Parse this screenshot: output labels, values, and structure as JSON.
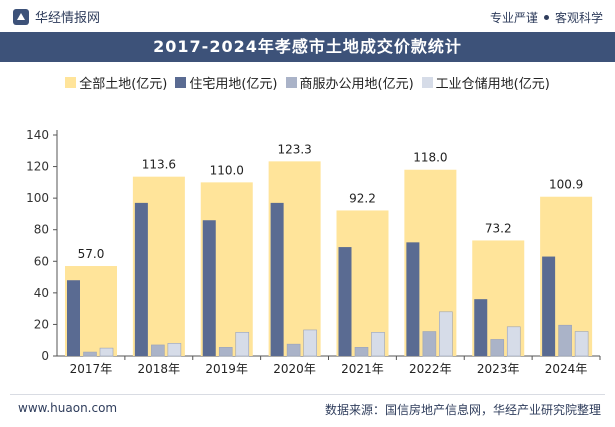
{
  "header": {
    "brand": "华经情报网",
    "tagline_left": "专业严谨",
    "tagline_right": "客观科学"
  },
  "title": "2017-2024年孝感市土地成交价款统计",
  "footer": {
    "website": "www.huaon.com",
    "source": "数据来源：国信房地产信息网，华经产业研究院整理"
  },
  "colors": {
    "total": "#ffe49a",
    "residential": "#5a6b92",
    "commercial": "#aab3c8",
    "industrial": "#d6dce8",
    "title_bg": "#3d5279"
  },
  "chart_data": {
    "type": "bar",
    "categories": [
      "2017年",
      "2018年",
      "2019年",
      "2020年",
      "2021年",
      "2022年",
      "2023年",
      "2024年"
    ],
    "series": [
      {
        "name": "全部土地(亿元)",
        "values": [
          57.0,
          113.6,
          110.0,
          123.3,
          92.2,
          118.0,
          73.2,
          100.9
        ]
      },
      {
        "name": "住宅用地(亿元)",
        "values": [
          48,
          97,
          86,
          97,
          69,
          72,
          36,
          63
        ]
      },
      {
        "name": "商服办公用地(亿元)",
        "values": [
          2.5,
          7,
          5.5,
          7.5,
          5.5,
          15.5,
          10.5,
          19.5
        ]
      },
      {
        "name": "工业仓储用地(亿元)",
        "values": [
          5,
          8,
          15,
          16.5,
          15,
          28,
          18.5,
          15.5
        ]
      }
    ],
    "data_labels": [
      "57.0",
      "113.6",
      "110.0",
      "123.3",
      "92.2",
      "118.0",
      "73.2",
      "100.9"
    ],
    "ylim": [
      0,
      140
    ],
    "yticks": [
      "0",
      "20",
      "40",
      "60",
      "80",
      "100",
      "120",
      "140"
    ],
    "grid": false,
    "legend_position": "top"
  }
}
